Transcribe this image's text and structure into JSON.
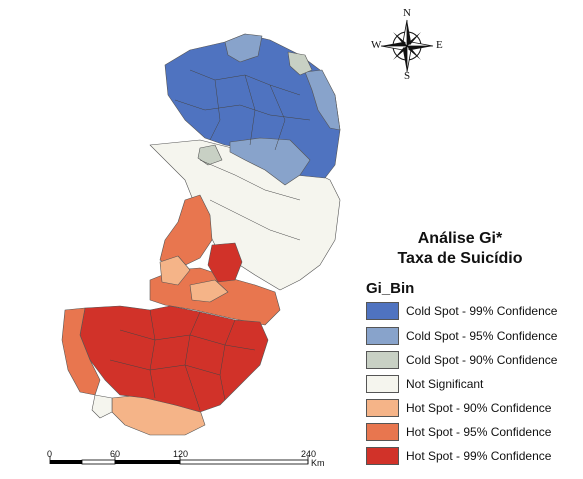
{
  "title_line1": "Análise Gi*",
  "title_line2": "Taxa de Suicídio",
  "legend": {
    "heading": "Gi_Bin",
    "items": [
      {
        "label": "Cold Spot - 99% Confidence",
        "color": "#4f73c0"
      },
      {
        "label": "Cold Spot - 95% Confidence",
        "color": "#88a3cb"
      },
      {
        "label": "Cold Spot - 90% Confidence",
        "color": "#c8d0c4"
      },
      {
        "label": "Not Significant",
        "color": "#f5f5ee"
      },
      {
        "label": "Hot Spot - 90% Confidence",
        "color": "#f5b488"
      },
      {
        "label": "Hot Spot - 95% Confidence",
        "color": "#e8764f"
      },
      {
        "label": "Hot Spot - 99% Confidence",
        "color": "#d13229"
      }
    ]
  },
  "compass": {
    "n": "N",
    "s": "S",
    "e": "E",
    "w": "W"
  },
  "scale_bar": {
    "ticks": [
      "0",
      "60",
      "120",
      "240"
    ],
    "unit": "Km"
  }
}
